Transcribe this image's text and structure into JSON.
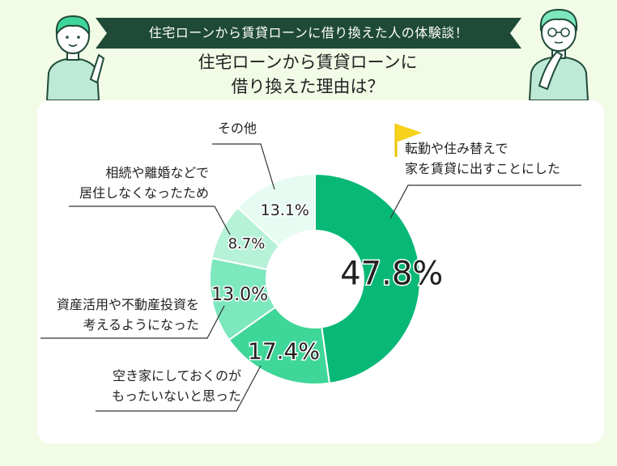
{
  "banner": {
    "text": "住宅ローンから賃貸ローンに借り換えた人の体験談！"
  },
  "title": {
    "line1": "住宅ローンから賃貸ローンに",
    "line2": "借り換えた理由は？"
  },
  "colors": {
    "banner": "#1f4a38",
    "background": "#f1fbe6",
    "slices": [
      "#08b877",
      "#3fd699",
      "#7de7bd",
      "#b6f2d8",
      "#e6fbf1"
    ]
  },
  "chart_data": {
    "type": "pie",
    "style": "donut",
    "unit": "%",
    "slices": [
      {
        "label_lines": [
          "転勤や住み替えで",
          "家を賃貸に出すことにした"
        ],
        "value": 47.8,
        "value_label": "47.8%"
      },
      {
        "label_lines": [
          "空き家にしておくのが",
          "もったいないと思った"
        ],
        "value": 17.4,
        "value_label": "17.4%"
      },
      {
        "label_lines": [
          "資産活用や不動産投資を",
          "考えるようになった"
        ],
        "value": 13.0,
        "value_label": "13.0%"
      },
      {
        "label_lines": [
          "相続や離婚などで",
          "居住しなくなったため"
        ],
        "value": 8.7,
        "value_label": "8.7%"
      },
      {
        "label_lines": [
          "その他"
        ],
        "value": 13.1,
        "value_label": "13.1%"
      }
    ]
  }
}
